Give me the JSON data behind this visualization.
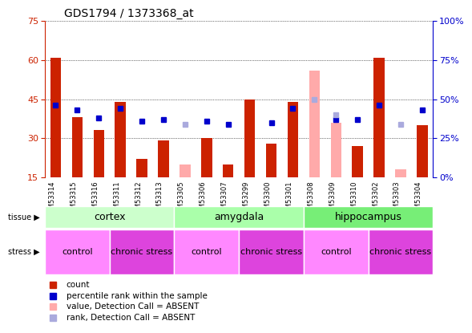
{
  "title": "GDS1794 / 1373368_at",
  "samples": [
    "GSM53314",
    "GSM53315",
    "GSM53316",
    "GSM53311",
    "GSM53312",
    "GSM53313",
    "GSM53305",
    "GSM53306",
    "GSM53307",
    "GSM53299",
    "GSM53300",
    "GSM53301",
    "GSM53308",
    "GSM53309",
    "GSM53310",
    "GSM53302",
    "GSM53303",
    "GSM53304"
  ],
  "red_values": [
    61,
    38,
    33,
    44,
    22,
    29,
    null,
    30,
    20,
    45,
    28,
    44,
    null,
    null,
    27,
    61,
    null,
    35
  ],
  "blue_values": [
    46,
    43,
    38,
    44,
    36,
    37,
    null,
    36,
    34,
    null,
    35,
    44,
    null,
    37,
    37,
    46,
    null,
    43
  ],
  "pink_values": [
    null,
    null,
    null,
    null,
    null,
    null,
    20,
    null,
    null,
    null,
    null,
    null,
    56,
    36,
    null,
    null,
    18,
    null
  ],
  "lightblue_values": [
    null,
    null,
    null,
    null,
    null,
    null,
    34,
    null,
    null,
    null,
    null,
    null,
    50,
    40,
    null,
    null,
    34,
    null
  ],
  "tissue_groups": [
    {
      "label": "cortex",
      "start": 0,
      "end": 5,
      "color": "#ccffcc"
    },
    {
      "label": "amygdala",
      "start": 6,
      "end": 11,
      "color": "#aaffaa"
    },
    {
      "label": "hippocampus",
      "start": 12,
      "end": 17,
      "color": "#77ee77"
    }
  ],
  "stress_groups": [
    {
      "label": "control",
      "start": 0,
      "end": 2,
      "color": "#ff88ff"
    },
    {
      "label": "chronic stress",
      "start": 3,
      "end": 5,
      "color": "#dd44dd"
    },
    {
      "label": "control",
      "start": 6,
      "end": 8,
      "color": "#ff88ff"
    },
    {
      "label": "chronic stress",
      "start": 9,
      "end": 11,
      "color": "#dd44dd"
    },
    {
      "label": "control",
      "start": 12,
      "end": 14,
      "color": "#ff88ff"
    },
    {
      "label": "chronic stress",
      "start": 15,
      "end": 17,
      "color": "#dd44dd"
    }
  ],
  "ylim_left": [
    15,
    75
  ],
  "ylim_right": [
    0,
    100
  ],
  "yticks_left": [
    15,
    30,
    45,
    60,
    75
  ],
  "yticks_right": [
    0,
    25,
    50,
    75,
    100
  ],
  "left_color": "#cc2200",
  "right_color": "#0000cc",
  "red_bar_color": "#cc2200",
  "blue_marker_color": "#0000cc",
  "pink_bar_color": "#ffaaaa",
  "lightblue_marker_color": "#aaaadd",
  "plot_bg_color": "#ffffff",
  "xtick_bg_color": "#cccccc",
  "bar_width": 0.5,
  "tissue_label_fontsize": 8,
  "stress_label_fontsize": 8
}
